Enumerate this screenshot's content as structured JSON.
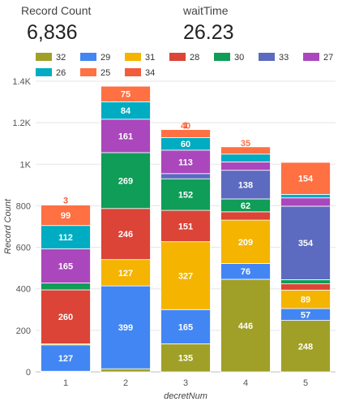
{
  "scorecards": [
    {
      "label": "Record Count",
      "value": "6,836"
    },
    {
      "label": "waitTime",
      "value": "26.23"
    }
  ],
  "chart_data": {
    "type": "bar",
    "stacked": true,
    "xlabel": "decretNum",
    "ylabel": "Record Count",
    "categories": [
      "1",
      "2",
      "3",
      "4",
      "5"
    ],
    "ylim": [
      0,
      1400
    ],
    "yticks": [
      0,
      200,
      400,
      600,
      800,
      1000,
      1200,
      1400
    ],
    "ytick_labels": [
      "0",
      "200",
      "400",
      "600",
      "800",
      "1K",
      "1.2K",
      "1.4K"
    ],
    "grid": true,
    "legend_position": "top",
    "series": [
      {
        "name": "32",
        "color": "#a0a028",
        "values": [
          3,
          15,
          135,
          446,
          248
        ]
      },
      {
        "name": "29",
        "color": "#4286f4",
        "values": [
          127,
          399,
          165,
          76,
          57
        ]
      },
      {
        "name": "31",
        "color": "#f4b400",
        "values": [
          5,
          127,
          327,
          209,
          89
        ]
      },
      {
        "name": "28",
        "color": "#db4437",
        "values": [
          260,
          246,
          151,
          40,
          30
        ]
      },
      {
        "name": "30",
        "color": "#0f9d58",
        "values": [
          33,
          269,
          152,
          62,
          20
        ]
      },
      {
        "name": "33",
        "color": "#5c6bc0",
        "values": [
          0,
          0,
          25,
          138,
          354
        ]
      },
      {
        "name": "27",
        "color": "#ab47bc",
        "values": [
          165,
          161,
          113,
          40,
          40
        ]
      },
      {
        "name": "26",
        "color": "#00acc1",
        "values": [
          112,
          84,
          60,
          38,
          17
        ]
      },
      {
        "name": "25",
        "color": "#ff7043",
        "values": [
          99,
          75,
          40,
          35,
          154
        ]
      },
      {
        "name": "34",
        "color": "#f25c3d",
        "values": [
          3,
          0,
          1,
          0,
          0
        ]
      }
    ]
  }
}
